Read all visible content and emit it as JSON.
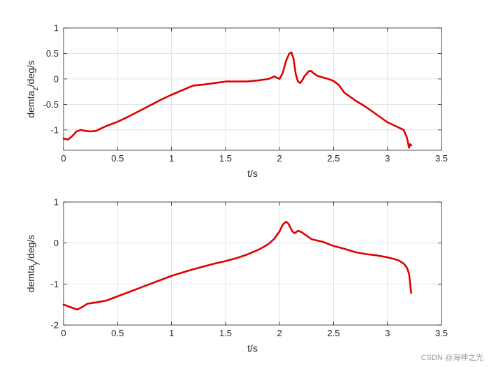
{
  "chart_data": [
    {
      "type": "line",
      "title": "",
      "xlabel": "t/s",
      "ylabel": {
        "main": "demta",
        "sub": "z",
        "suffix": "/deg/s"
      },
      "xlim": [
        0,
        3.5
      ],
      "ylim": [
        -1.4,
        1
      ],
      "xticks": [
        0,
        0.5,
        1,
        1.5,
        2,
        2.5,
        3,
        3.5
      ],
      "xtick_labels": [
        "0",
        "0.5",
        "1",
        "1.5",
        "2",
        "2.5",
        "3",
        "3.5"
      ],
      "yticks": [
        1,
        0.5,
        0,
        -0.5,
        -1
      ],
      "ytick_labels": [
        "1",
        "0.5",
        "0",
        "-0.5",
        "-1"
      ],
      "grid": true,
      "series": [
        {
          "color": "#e00000",
          "x": [
            0,
            0.04,
            0.08,
            0.12,
            0.16,
            0.2,
            0.25,
            0.3,
            0.35,
            0.4,
            0.5,
            0.6,
            0.7,
            0.8,
            0.9,
            1.0,
            1.1,
            1.2,
            1.3,
            1.4,
            1.5,
            1.6,
            1.7,
            1.8,
            1.9,
            1.95,
            2.0,
            2.03,
            2.06,
            2.09,
            2.11,
            2.13,
            2.15,
            2.17,
            2.19,
            2.21,
            2.23,
            2.25,
            2.27,
            2.29,
            2.31,
            2.35,
            2.4,
            2.45,
            2.5,
            2.55,
            2.6,
            2.7,
            2.8,
            2.9,
            3.0,
            3.05,
            3.1,
            3.15,
            3.18,
            3.2,
            3.21,
            3.22
          ],
          "y": [
            -1.17,
            -1.19,
            -1.12,
            -1.03,
            -1.0,
            -1.02,
            -1.03,
            -1.02,
            -0.97,
            -0.92,
            -0.84,
            -0.74,
            -0.63,
            -0.52,
            -0.41,
            -0.31,
            -0.22,
            -0.13,
            -0.11,
            -0.08,
            -0.05,
            -0.05,
            -0.05,
            -0.03,
            0.0,
            0.05,
            0.0,
            0.12,
            0.35,
            0.5,
            0.52,
            0.4,
            0.1,
            -0.05,
            -0.08,
            -0.03,
            0.05,
            0.1,
            0.15,
            0.16,
            0.12,
            0.06,
            0.03,
            0.0,
            -0.04,
            -0.12,
            -0.27,
            -0.42,
            -0.55,
            -0.7,
            -0.85,
            -0.9,
            -0.95,
            -1.0,
            -1.15,
            -1.35,
            -1.28,
            -1.3
          ]
        }
      ]
    },
    {
      "type": "line",
      "title": "",
      "xlabel": "t/s",
      "ylabel": {
        "main": "demta",
        "sub": "y",
        "suffix": "/deg/s"
      },
      "xlim": [
        0,
        3.5
      ],
      "ylim": [
        -2,
        1
      ],
      "xticks": [
        0,
        0.5,
        1,
        1.5,
        2,
        2.5,
        3,
        3.5
      ],
      "xtick_labels": [
        "0",
        "0.5",
        "1",
        "1.5",
        "2",
        "2.5",
        "3",
        "3.5"
      ],
      "yticks": [
        1,
        0,
        -1,
        -2
      ],
      "ytick_labels": [
        "1",
        "0",
        "-1",
        "-2"
      ],
      "grid": true,
      "series": [
        {
          "color": "#e00000",
          "x": [
            0,
            0.05,
            0.1,
            0.13,
            0.18,
            0.22,
            0.3,
            0.4,
            0.5,
            0.6,
            0.7,
            0.8,
            0.9,
            1.0,
            1.1,
            1.2,
            1.3,
            1.4,
            1.5,
            1.6,
            1.7,
            1.8,
            1.85,
            1.9,
            1.95,
            2.0,
            2.03,
            2.06,
            2.08,
            2.1,
            2.12,
            2.14,
            2.17,
            2.2,
            2.25,
            2.3,
            2.4,
            2.5,
            2.6,
            2.7,
            2.8,
            2.9,
            3.0,
            3.05,
            3.1,
            3.15,
            3.18,
            3.2,
            3.21,
            3.22
          ],
          "y": [
            -1.5,
            -1.55,
            -1.6,
            -1.62,
            -1.55,
            -1.48,
            -1.45,
            -1.4,
            -1.3,
            -1.2,
            -1.1,
            -1.0,
            -0.9,
            -0.8,
            -0.72,
            -0.64,
            -0.57,
            -0.5,
            -0.44,
            -0.37,
            -0.28,
            -0.17,
            -0.1,
            -0.02,
            0.1,
            0.28,
            0.45,
            0.52,
            0.48,
            0.38,
            0.28,
            0.24,
            0.3,
            0.27,
            0.18,
            0.09,
            0.03,
            -0.07,
            -0.14,
            -0.22,
            -0.27,
            -0.3,
            -0.35,
            -0.38,
            -0.42,
            -0.5,
            -0.6,
            -0.75,
            -1.0,
            -1.22
          ]
        }
      ]
    }
  ],
  "watermark": "CSDN @海神之光"
}
